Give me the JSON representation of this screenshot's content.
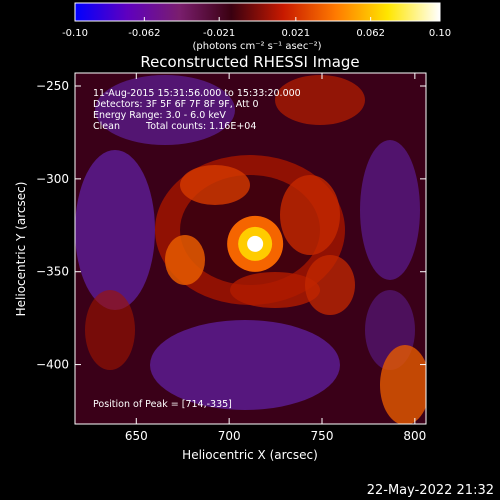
{
  "chart_data": {
    "type": "heatmap",
    "title": "Reconstructed RHESSI Image",
    "xlabel": "Heliocentric X (arcsec)",
    "ylabel": "Heliocentric Y (arcsec)",
    "xlim": [
      617,
      806
    ],
    "ylim": [
      -432,
      -243
    ],
    "x_ticks": [
      650,
      700,
      750,
      800
    ],
    "y_ticks": [
      -250,
      -300,
      -350,
      -400
    ],
    "grid": false,
    "colorbar": {
      "min": -0.1,
      "max": 0.1,
      "tick_values": [
        -0.1,
        -0.062,
        -0.021,
        0.021,
        0.062,
        0.1
      ],
      "tick_labels": [
        "-0.10",
        "-0.062",
        "-0.021",
        "0.021",
        "0.062",
        "0.10"
      ],
      "units_label": "(photons cm⁻² s⁻¹ asec⁻²)",
      "colors": [
        "#0000ff",
        "#5f00bf",
        "#7a1e6e",
        "#3a0010",
        "#c81a00",
        "#ff7a00",
        "#ffe600",
        "#ffffff"
      ]
    },
    "annotations": {
      "time_range": "11-Aug-2015 15:31:56.000 to 15:33:20.000",
      "detectors": "Detectors: 3F 5F 6F 7F 8F 9F, Att 0",
      "energy": "Energy Range: 3.0 - 6.0 keV",
      "method": "Clean",
      "counts": "Total counts: 1.16E+04",
      "peak": "Position of Peak = [714,-335]"
    },
    "peak": {
      "x": 714,
      "y": -335
    },
    "timestamp": "22-May-2022 21:32"
  }
}
